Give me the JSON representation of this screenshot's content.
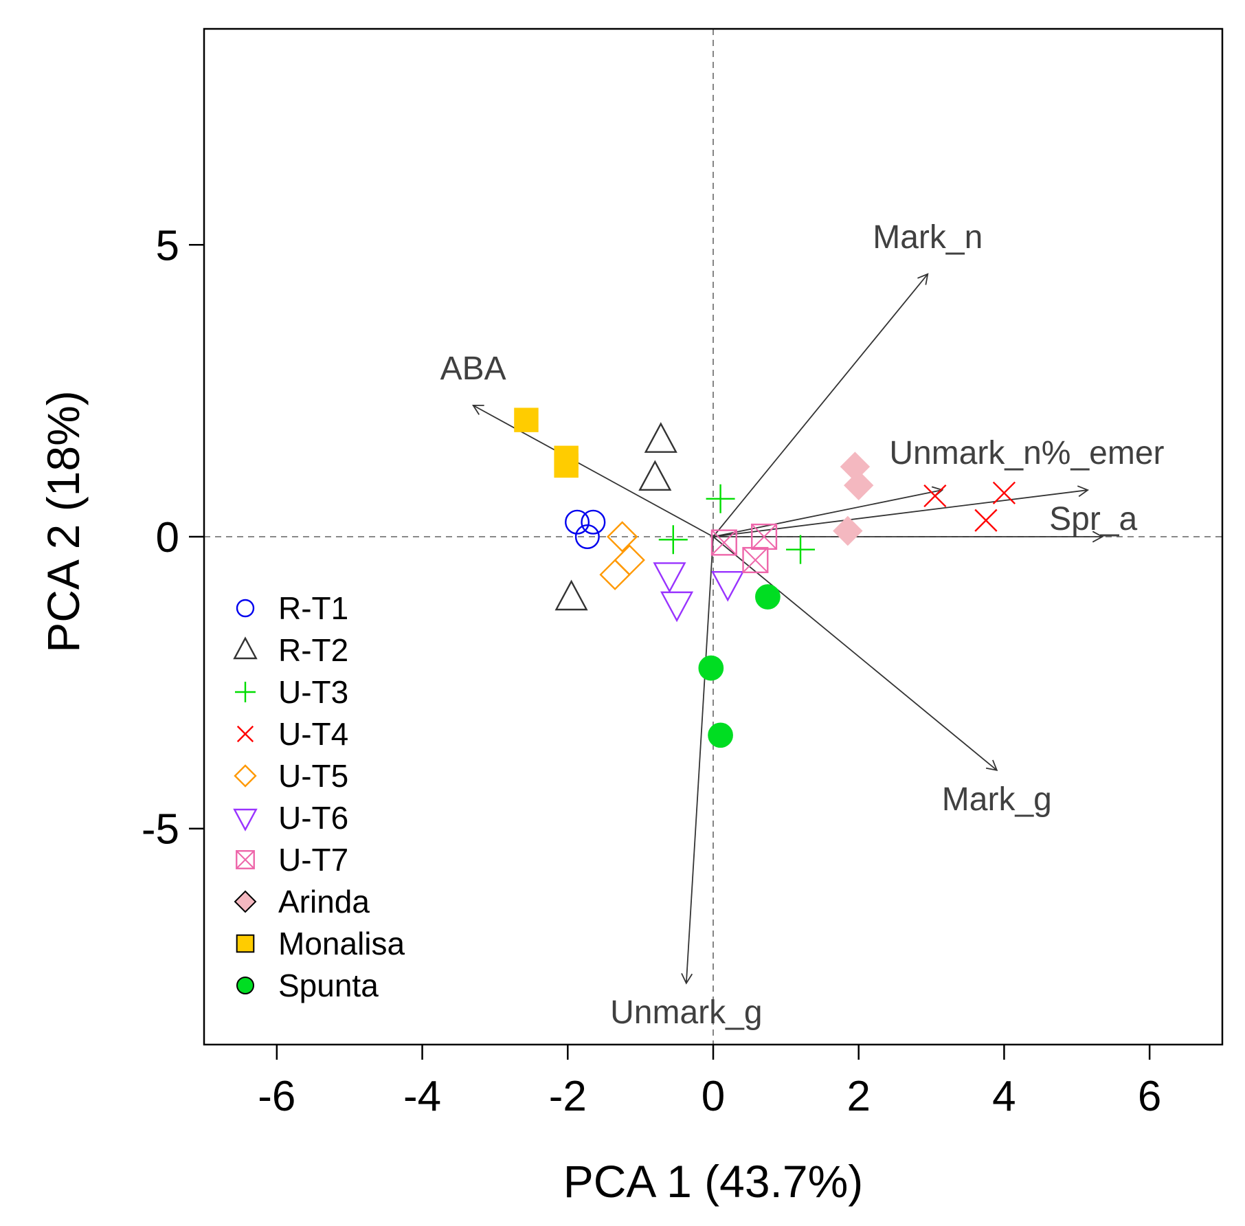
{
  "chart_data": {
    "type": "scatter",
    "subtype": "pca-biplot",
    "title": "",
    "xlabel": "PCA 1 (43.7%)",
    "ylabel": "PCA 2 (18%)",
    "xlim": [
      -7,
      7
    ],
    "ylim": [
      -8.7,
      8.7
    ],
    "xticks": [
      -6,
      -4,
      -2,
      0,
      2,
      4,
      6
    ],
    "xtick_labels": [
      "-6",
      "-4",
      "-2",
      "0",
      "2",
      "4",
      "6"
    ],
    "yticks": [
      -5,
      0,
      5
    ],
    "ytick_labels": [
      "-5",
      "0",
      "5"
    ],
    "grid": false,
    "reference_lines": {
      "x": 0,
      "y": 0,
      "style": "dashed"
    },
    "legend_position": "bottom-left",
    "colors": {
      "axis": "#000000",
      "arrow": "#333333",
      "arrow_label": "#404040",
      "reference_line": "#777777"
    },
    "series": [
      {
        "name": "R-T1",
        "marker": "circle-open",
        "color": "#0000ee",
        "points": [
          [
            -1.87,
            0.25
          ],
          [
            -1.65,
            0.25
          ],
          [
            -1.73,
            0.0
          ]
        ]
      },
      {
        "name": "R-T2",
        "marker": "triangle-up-open",
        "color": "#333333",
        "points": [
          [
            -0.72,
            1.65
          ],
          [
            -0.8,
            1.0
          ],
          [
            -1.95,
            -1.05
          ]
        ]
      },
      {
        "name": "U-T3",
        "marker": "plus",
        "color": "#00dd00",
        "points": [
          [
            0.1,
            0.65
          ],
          [
            -0.55,
            -0.05
          ],
          [
            1.2,
            -0.22
          ]
        ]
      },
      {
        "name": "U-T4",
        "marker": "cross",
        "color": "#ff0000",
        "points": [
          [
            3.05,
            0.7
          ],
          [
            4.0,
            0.75
          ],
          [
            3.75,
            0.28
          ]
        ]
      },
      {
        "name": "U-T5",
        "marker": "diamond-open",
        "color": "#ff9900",
        "points": [
          [
            -1.25,
            0.0
          ],
          [
            -1.15,
            -0.4
          ],
          [
            -1.35,
            -0.65
          ]
        ]
      },
      {
        "name": "U-T6",
        "marker": "triangle-down-open",
        "color": "#9933ff",
        "points": [
          [
            -0.6,
            -0.65
          ],
          [
            -0.5,
            -1.15
          ],
          [
            0.2,
            -0.8
          ]
        ]
      },
      {
        "name": "U-T7",
        "marker": "square-crossed",
        "color": "#ee66aa",
        "points": [
          [
            0.15,
            -0.1
          ],
          [
            0.7,
            0.0
          ],
          [
            0.58,
            -0.4
          ]
        ]
      },
      {
        "name": "Arinda",
        "marker": "diamond-filled",
        "color": "#f4b8c0",
        "points": [
          [
            1.95,
            1.2
          ],
          [
            2.0,
            0.88
          ],
          [
            1.85,
            0.1
          ]
        ]
      },
      {
        "name": "Monalisa",
        "marker": "square-filled",
        "color": "#ffcc00",
        "points": [
          [
            -2.57,
            2.0
          ],
          [
            -2.02,
            1.35
          ],
          [
            -2.02,
            1.22
          ]
        ]
      },
      {
        "name": "Spunta",
        "marker": "circle-filled",
        "color": "#00dd22",
        "points": [
          [
            0.75,
            -1.03
          ],
          [
            -0.03,
            -2.25
          ],
          [
            0.1,
            -3.4
          ]
        ]
      }
    ],
    "loadings": [
      {
        "name": "Mark_n",
        "x": 2.95,
        "y": 4.5,
        "label_anchor": "top"
      },
      {
        "name": "ABA",
        "x": -3.3,
        "y": 2.25,
        "label_anchor": "top"
      },
      {
        "name": "Unmark_n%_emer",
        "x": 3.15,
        "y": 0.8,
        "label_anchor": "top"
      },
      {
        "name": "Spr_a",
        "x": 5.15,
        "y": 0.8,
        "label_anchor": "bottom"
      },
      {
        "name": "",
        "x": 5.35,
        "y": 0.0,
        "label_anchor": "none"
      },
      {
        "name": "Mark_g",
        "x": 3.9,
        "y": -4.0,
        "label_anchor": "bottom"
      },
      {
        "name": "Unmark_g",
        "x": -0.37,
        "y": -7.65,
        "label_anchor": "bottom"
      }
    ]
  }
}
